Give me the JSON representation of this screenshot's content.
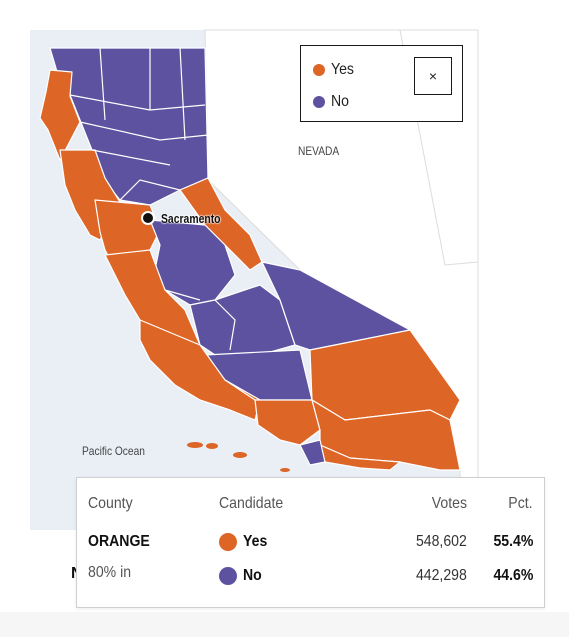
{
  "legend": {
    "items": [
      {
        "label": "Yes",
        "color": "#dd6526"
      },
      {
        "label": "No",
        "color": "#5c529f"
      }
    ],
    "close_label": "×"
  },
  "map": {
    "labels": {
      "nevada": "NEVADA",
      "pacific_ocean": "Pacific Ocean",
      "sacramento": "Sacramento"
    },
    "colors": {
      "yes": "#dd6526",
      "no": "#5c529f",
      "land_outside": "#ffffff",
      "ocean": "#e9eff5",
      "border": "#ffffff",
      "state_border": "#dcdcdc"
    }
  },
  "tooltip": {
    "headers": {
      "county": "County",
      "candidate": "Candidate",
      "votes": "Votes",
      "pct": "Pct."
    },
    "county_name": "ORANGE",
    "reporting": "80% in",
    "rows": [
      {
        "candidate": "Yes",
        "color": "#dd6526",
        "votes": "548,602",
        "pct": "55.4%"
      },
      {
        "candidate": "No",
        "color": "#5c529f",
        "votes": "442,298",
        "pct": "44.6%"
      }
    ]
  }
}
